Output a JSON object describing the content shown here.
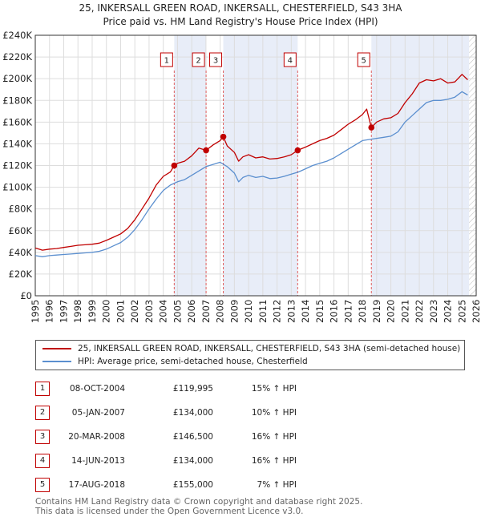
{
  "chart_data": {
    "type": "line",
    "title": "25, INKERSALL GREEN ROAD, INKERSALL, CHESTERFIELD, S43 3HA",
    "subtitle": "Price paid vs. HM Land Registry's House Price Index (HPI)",
    "xlabel": "",
    "ylabel": "",
    "xlim": [
      1995,
      2026
    ],
    "ylim": [
      0,
      240000
    ],
    "x_ticks": [
      1995,
      1996,
      1997,
      1998,
      1999,
      2000,
      2001,
      2002,
      2003,
      2004,
      2005,
      2006,
      2007,
      2008,
      2009,
      2010,
      2011,
      2012,
      2013,
      2014,
      2015,
      2016,
      2017,
      2018,
      2019,
      2020,
      2021,
      2022,
      2023,
      2024,
      2025,
      2026
    ],
    "y_ticks": [
      {
        "value": 0,
        "label": "£0"
      },
      {
        "value": 20000,
        "label": "£20K"
      },
      {
        "value": 40000,
        "label": "£40K"
      },
      {
        "value": 60000,
        "label": "£60K"
      },
      {
        "value": 80000,
        "label": "£80K"
      },
      {
        "value": 100000,
        "label": "£100K"
      },
      {
        "value": 120000,
        "label": "£120K"
      },
      {
        "value": 140000,
        "label": "£140K"
      },
      {
        "value": 160000,
        "label": "£160K"
      },
      {
        "value": 180000,
        "label": "£180K"
      },
      {
        "value": 200000,
        "label": "£200K"
      },
      {
        "value": 220000,
        "label": "£220K"
      },
      {
        "value": 240000,
        "label": "£240K"
      }
    ],
    "series": [
      {
        "name": "25, INKERSALL GREEN ROAD, INKERSALL, CHESTERFIELD, S43 3HA (semi-detached house)",
        "color": "#c00000",
        "x": [
          1995,
          1995.5,
          1996,
          1996.5,
          1997,
          1997.5,
          1998,
          1998.5,
          1999,
          1999.5,
          2000,
          2000.5,
          2001,
          2001.5,
          2002,
          2002.5,
          2003,
          2003.5,
          2004,
          2004.5,
          2004.77,
          2005,
          2005.5,
          2006,
          2006.5,
          2007.01,
          2007.5,
          2008,
          2008.22,
          2008.5,
          2009,
          2009.3,
          2009.6,
          2010,
          2010.5,
          2011,
          2011.5,
          2012,
          2012.5,
          2013,
          2013.45,
          2014,
          2014.5,
          2015,
          2015.5,
          2016,
          2016.5,
          2017,
          2017.5,
          2018,
          2018.3,
          2018.63,
          2019,
          2019.5,
          2020,
          2020.5,
          2021,
          2021.5,
          2022,
          2022.5,
          2023,
          2023.5,
          2024,
          2024.5,
          2025,
          2025.4
        ],
        "values": [
          44000,
          42000,
          43000,
          43500,
          44500,
          45500,
          46500,
          47000,
          47500,
          48500,
          51000,
          54000,
          57000,
          62000,
          70000,
          80000,
          90000,
          102000,
          110000,
          114000,
          119995,
          122000,
          124000,
          129000,
          136000,
          134000,
          139000,
          143000,
          146500,
          138000,
          132000,
          124000,
          128000,
          130000,
          127000,
          128000,
          126000,
          126500,
          128000,
          130000,
          134000,
          137000,
          140000,
          143000,
          145000,
          148000,
          153000,
          158000,
          162000,
          167000,
          172000,
          155000,
          160000,
          163000,
          164000,
          168000,
          178000,
          186000,
          196000,
          199000,
          198000,
          200000,
          196000,
          197000,
          204000,
          199000
        ]
      },
      {
        "name": "HPI: Average price, semi-detached house, Chesterfield",
        "color": "#5b8fcf",
        "x": [
          1995,
          1995.5,
          1996,
          1996.5,
          1997,
          1997.5,
          1998,
          1998.5,
          1999,
          1999.5,
          2000,
          2000.5,
          2001,
          2001.5,
          2002,
          2002.5,
          2003,
          2003.5,
          2004,
          2004.5,
          2005,
          2005.5,
          2006,
          2006.5,
          2007,
          2007.5,
          2008,
          2008.5,
          2009,
          2009.3,
          2009.6,
          2010,
          2010.5,
          2011,
          2011.5,
          2012,
          2012.5,
          2013,
          2013.5,
          2014,
          2014.5,
          2015,
          2015.5,
          2016,
          2016.5,
          2017,
          2017.5,
          2018,
          2018.5,
          2019,
          2019.5,
          2020,
          2020.5,
          2021,
          2021.5,
          2022,
          2022.5,
          2023,
          2023.5,
          2024,
          2024.5,
          2025,
          2025.4
        ],
        "values": [
          37000,
          36000,
          37000,
          37500,
          38000,
          38500,
          39000,
          39500,
          40000,
          41000,
          43000,
          46000,
          49000,
          54000,
          61000,
          70000,
          80000,
          89000,
          97000,
          102000,
          105000,
          107000,
          111000,
          115000,
          119000,
          121000,
          123000,
          119000,
          113000,
          105000,
          109000,
          111000,
          109000,
          110000,
          108000,
          108500,
          110000,
          112000,
          114000,
          117000,
          120000,
          122000,
          124000,
          127000,
          131000,
          135000,
          139000,
          143000,
          144000,
          145000,
          146000,
          147000,
          151000,
          160000,
          166000,
          172000,
          178000,
          180000,
          180000,
          181000,
          183000,
          188000,
          185000
        ]
      }
    ],
    "sales": [
      {
        "label": "1",
        "x": 2004.77,
        "y": 119995
      },
      {
        "label": "2",
        "x": 2007.01,
        "y": 134000
      },
      {
        "label": "3",
        "x": 2008.22,
        "y": 146500
      },
      {
        "label": "4",
        "x": 2013.45,
        "y": 134000
      },
      {
        "label": "5",
        "x": 2018.63,
        "y": 155000
      }
    ],
    "shaded_spans": [
      [
        2004.77,
        2007.01
      ],
      [
        2008.22,
        2013.45
      ],
      [
        2018.63,
        2025.5
      ]
    ],
    "future_hatch_from": 2025.5
  },
  "legend": {
    "items": [
      {
        "label": "25, INKERSALL GREEN ROAD, INKERSALL, CHESTERFIELD, S43 3HA (semi-detached house)",
        "color": "#c00000"
      },
      {
        "label": "HPI: Average price, semi-detached house, Chesterfield",
        "color": "#5b8fcf"
      }
    ]
  },
  "table": {
    "rows": [
      {
        "num": "1",
        "date": "08-OCT-2004",
        "price": "£119,995",
        "hpi": "15% ↑ HPI"
      },
      {
        "num": "2",
        "date": "05-JAN-2007",
        "price": "£134,000",
        "hpi": "10% ↑ HPI"
      },
      {
        "num": "3",
        "date": "20-MAR-2008",
        "price": "£146,500",
        "hpi": "16% ↑ HPI"
      },
      {
        "num": "4",
        "date": "14-JUN-2013",
        "price": "£134,000",
        "hpi": "16% ↑ HPI"
      },
      {
        "num": "5",
        "date": "17-AUG-2018",
        "price": "£155,000",
        "hpi": "7% ↑ HPI"
      }
    ]
  },
  "footer": {
    "line1": "Contains HM Land Registry data © Crown copyright and database right 2025.",
    "line2": "This data is licensed under the Open Government Licence v3.0."
  }
}
